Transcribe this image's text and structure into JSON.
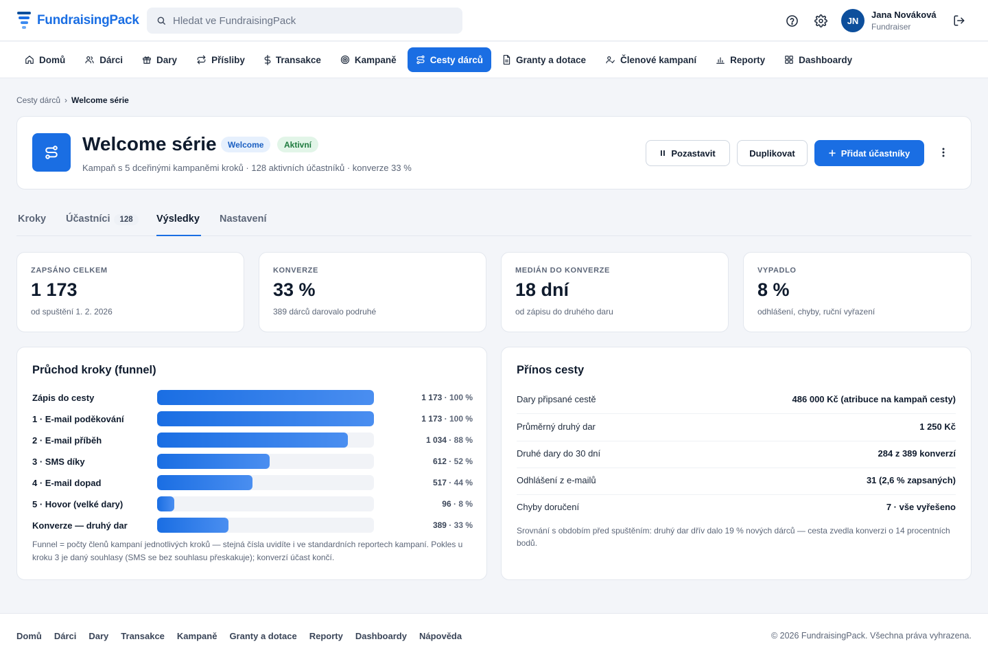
{
  "header": {
    "brand": "FundraisingPack",
    "search_placeholder": "Hledat ve FundraisingPack",
    "user": {
      "initials": "JN",
      "name": "Jana Nováková",
      "role": "Fundraiser"
    }
  },
  "nav": [
    {
      "label": "Domů",
      "icon": "home-icon"
    },
    {
      "label": "Dárci",
      "icon": "users-icon"
    },
    {
      "label": "Dary",
      "icon": "gift-icon"
    },
    {
      "label": "Přísliby",
      "icon": "repeat-icon"
    },
    {
      "label": "Transakce",
      "icon": "dollar-icon"
    },
    {
      "label": "Kampaně",
      "icon": "target-icon"
    },
    {
      "label": "Cesty dárců",
      "icon": "route-icon",
      "active": true
    },
    {
      "label": "Granty a dotace",
      "icon": "document-icon"
    },
    {
      "label": "Členové kampaní",
      "icon": "user-check-icon"
    },
    {
      "label": "Reporty",
      "icon": "bar-chart-icon"
    },
    {
      "label": "Dashboardy",
      "icon": "grid-icon"
    }
  ],
  "breadcrumb": {
    "parent": "Cesty dárců",
    "separator": "›",
    "current": "Welcome série"
  },
  "journey": {
    "title": "Welcome série",
    "badge_type": "Welcome",
    "badge_status": "Aktivní",
    "subtitle": "Kampaň s 5 dceřinými kampaněmi kroků · 128 aktivních účastníků · konverze 33 %",
    "actions": {
      "pause": "Pozastavit",
      "duplicate": "Duplikovat",
      "add": "Přidat účastníky"
    }
  },
  "tabs": [
    {
      "label": "Kroky"
    },
    {
      "label": "Účastníci",
      "count": "128"
    },
    {
      "label": "Výsledky",
      "active": true
    },
    {
      "label": "Nastavení"
    }
  ],
  "stats": [
    {
      "label": "ZAPSÁNO CELKEM",
      "value": "1 173",
      "sub": "od spuštění 1. 2. 2026"
    },
    {
      "label": "KONVERZE",
      "value": "33 %",
      "sub": "389 dárců darovalo podruhé"
    },
    {
      "label": "MEDIÁN DO KONVERZE",
      "value": "18 dní",
      "sub": "od zápisu do druhého daru"
    },
    {
      "label": "VYPADLO",
      "value": "8 %",
      "sub": "odhlášení, chyby, ruční vyřazení"
    }
  ],
  "funnel": {
    "title": "Průchod kroky (funnel)",
    "rows": [
      {
        "label": "Zápis do cesty",
        "count": "1 173",
        "pct": "100 %",
        "value": 100
      },
      {
        "label": "1 · E-mail poděkování",
        "count": "1 173",
        "pct": "100 %",
        "value": 100
      },
      {
        "label": "2 · E-mail příběh",
        "count": "1 034",
        "pct": "88 %",
        "value": 88
      },
      {
        "label": "3 · SMS díky",
        "count": "612",
        "pct": "52 %",
        "value": 52
      },
      {
        "label": "4 · E-mail dopad",
        "count": "517",
        "pct": "44 %",
        "value": 44
      },
      {
        "label": "5 · Hovor (velké dary)",
        "count": "96",
        "pct": "8 %",
        "value": 8
      },
      {
        "label": "Konverze — druhý dar",
        "count": "389",
        "pct": "33 %",
        "value": 33
      }
    ],
    "note": "Funnel = počty členů kampaní jednotlivých kroků — stejná čísla uvidíte i ve standardních reportech kampaní. Pokles u kroku 3 je daný souhlasy (SMS se bez souhlasu přeskakuje); konverzí účast končí."
  },
  "value": {
    "title": "Přínos cesty",
    "rows": [
      {
        "label": "Dary připsané cestě",
        "value": "486 000 Kč (atribuce na kampaň cesty)"
      },
      {
        "label": "Průměrný druhý dar",
        "value": "1 250 Kč"
      },
      {
        "label": "Druhé dary do 30 dní",
        "value": "284 z 389 konverzí"
      },
      {
        "label": "Odhlášení z e-mailů",
        "value": "31 (2,6 % zapsaných)"
      },
      {
        "label": "Chyby doručení",
        "value": "7 · vše vyřešeno"
      }
    ],
    "note": "Srovnání s obdobím před spuštěním: druhý dar dřív dalo 19 % nových dárců — cesta zvedla konverzi o 14 procentních bodů."
  },
  "footer": {
    "links": [
      "Domů",
      "Dárci",
      "Dary",
      "Transakce",
      "Kampaně",
      "Granty a dotace",
      "Reporty",
      "Dashboardy",
      "Nápověda"
    ],
    "copyright": "© 2026 FundraisingPack. Všechna práva vyhrazena."
  },
  "colors": {
    "accent": "#1a6ee3",
    "success": "#1d7a3d",
    "brand_dark": "#0d4f9c"
  }
}
